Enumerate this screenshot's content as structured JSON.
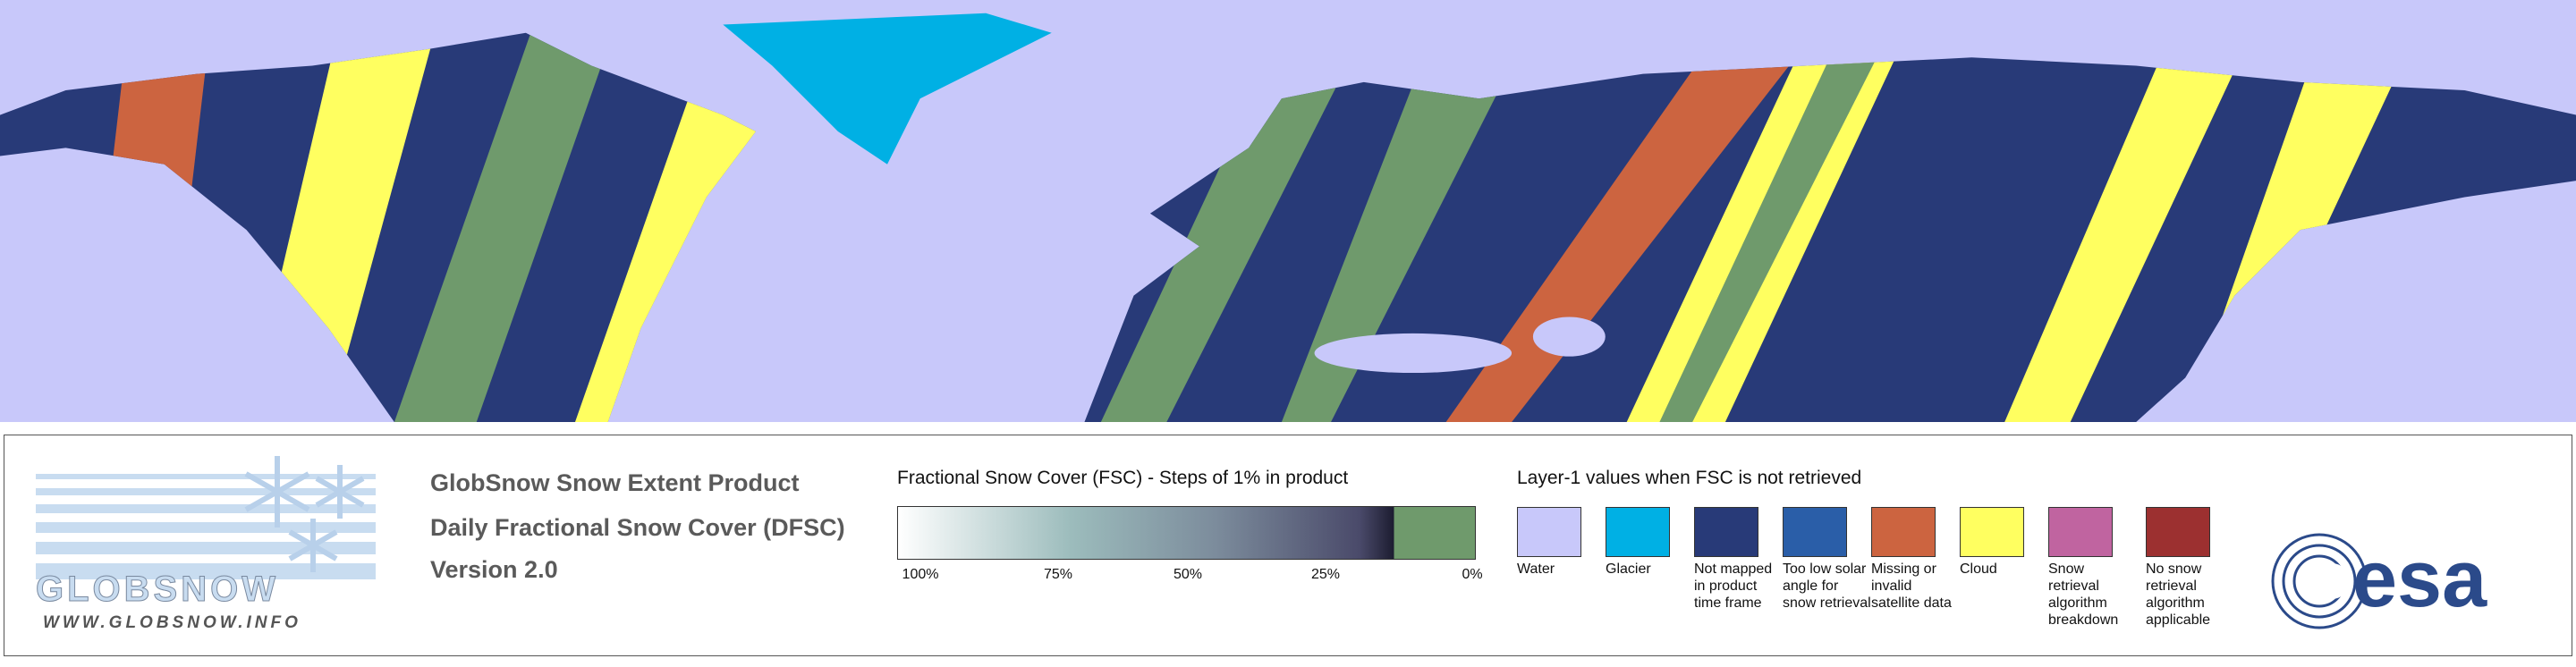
{
  "header": {
    "title": "GlobSnow Snow Extent Product",
    "subtitle": "Daily Fractional Snow Cover (DFSC)",
    "version": "Version 2.0"
  },
  "logo": {
    "name": "GLOBSNOW",
    "url": "WWW.GLOBSNOW.INFO"
  },
  "fsc_scale": {
    "title": "Fractional Snow Cover (FSC) - Steps of 1% in product",
    "labels": [
      "100%",
      "75%",
      "50%",
      "25%",
      "0%"
    ]
  },
  "layer1": {
    "title": "Layer-1 values when FSC is not retrieved",
    "items": [
      {
        "label": "Water",
        "color": "#c8c8fa"
      },
      {
        "label": "Glacier",
        "color": "#00b0e4"
      },
      {
        "label": "Not mapped in product time frame",
        "color": "#283a78"
      },
      {
        "label": "Too low solar angle for snow retrieval",
        "color": "#2a5ea8"
      },
      {
        "label": "Missing or invalid satellite data",
        "color": "#cc6440"
      },
      {
        "label": "Cloud",
        "color": "#ffff60"
      },
      {
        "label": "Snow retrieval algorithm breakdown",
        "color": "#c064a0"
      },
      {
        "label": "No snow retrieval algorithm applicable",
        "color": "#9c3030"
      }
    ]
  },
  "esa": "esa"
}
